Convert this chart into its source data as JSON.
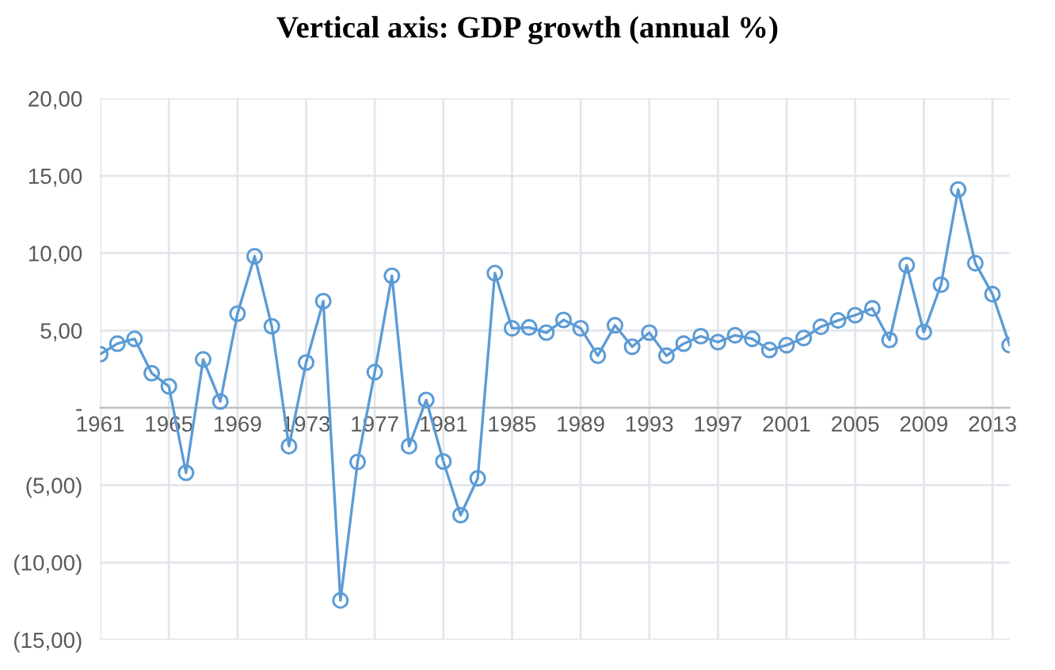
{
  "chart_data": {
    "type": "line",
    "title": "Vertical axis: GDP growth (annual %)",
    "categories": [
      "1961",
      null,
      null,
      null,
      "1965",
      null,
      null,
      null,
      "1969",
      null,
      null,
      null,
      "1973",
      null,
      null,
      null,
      "1977",
      null,
      null,
      null,
      "1981",
      null,
      null,
      null,
      "1985",
      null,
      null,
      null,
      "1989",
      null,
      null,
      null,
      "1993",
      null,
      null,
      null,
      "1997",
      null,
      null,
      null,
      "2001",
      null,
      null,
      null,
      "2005",
      null,
      null,
      null,
      "2009",
      null,
      null,
      null,
      "2013",
      null
    ],
    "series": [
      {
        "color": "#5b9bd5",
        "values": [
          3.47,
          4.15,
          4.46,
          2.24,
          1.39,
          -4.2,
          3.13,
          0.41,
          6.09,
          9.8,
          5.27,
          -2.48,
          2.93,
          6.9,
          -12.45,
          -3.5,
          2.31,
          8.54,
          -2.48,
          0.51,
          -3.47,
          -6.94,
          -4.56,
          8.71,
          5.14,
          5.2,
          4.86,
          5.68,
          5.14,
          3.37,
          5.34,
          3.95,
          4.86,
          3.37,
          4.15,
          4.63,
          4.25,
          4.69,
          4.46,
          3.74,
          4.05,
          4.52,
          5.24,
          5.65,
          5.99,
          6.43,
          4.39,
          9.22,
          4.9,
          7.96,
          14.12,
          9.35,
          7.35,
          4.05
        ]
      }
    ],
    "ylim": [
      -15,
      20
    ],
    "yticks": [
      {
        "value": -15,
        "label": "(15,00)"
      },
      {
        "value": -10,
        "label": "(10,00)"
      },
      {
        "value": -5,
        "label": "(5,00)"
      },
      {
        "value": 0,
        "label": "-"
      },
      {
        "value": 5,
        "label": "5,00"
      },
      {
        "value": 10,
        "label": "10,00"
      },
      {
        "value": 15,
        "label": "15,00"
      },
      {
        "value": 20,
        "label": "20,00"
      }
    ],
    "grid": true,
    "legend": false,
    "marker": "circle",
    "line_style": "solid"
  }
}
